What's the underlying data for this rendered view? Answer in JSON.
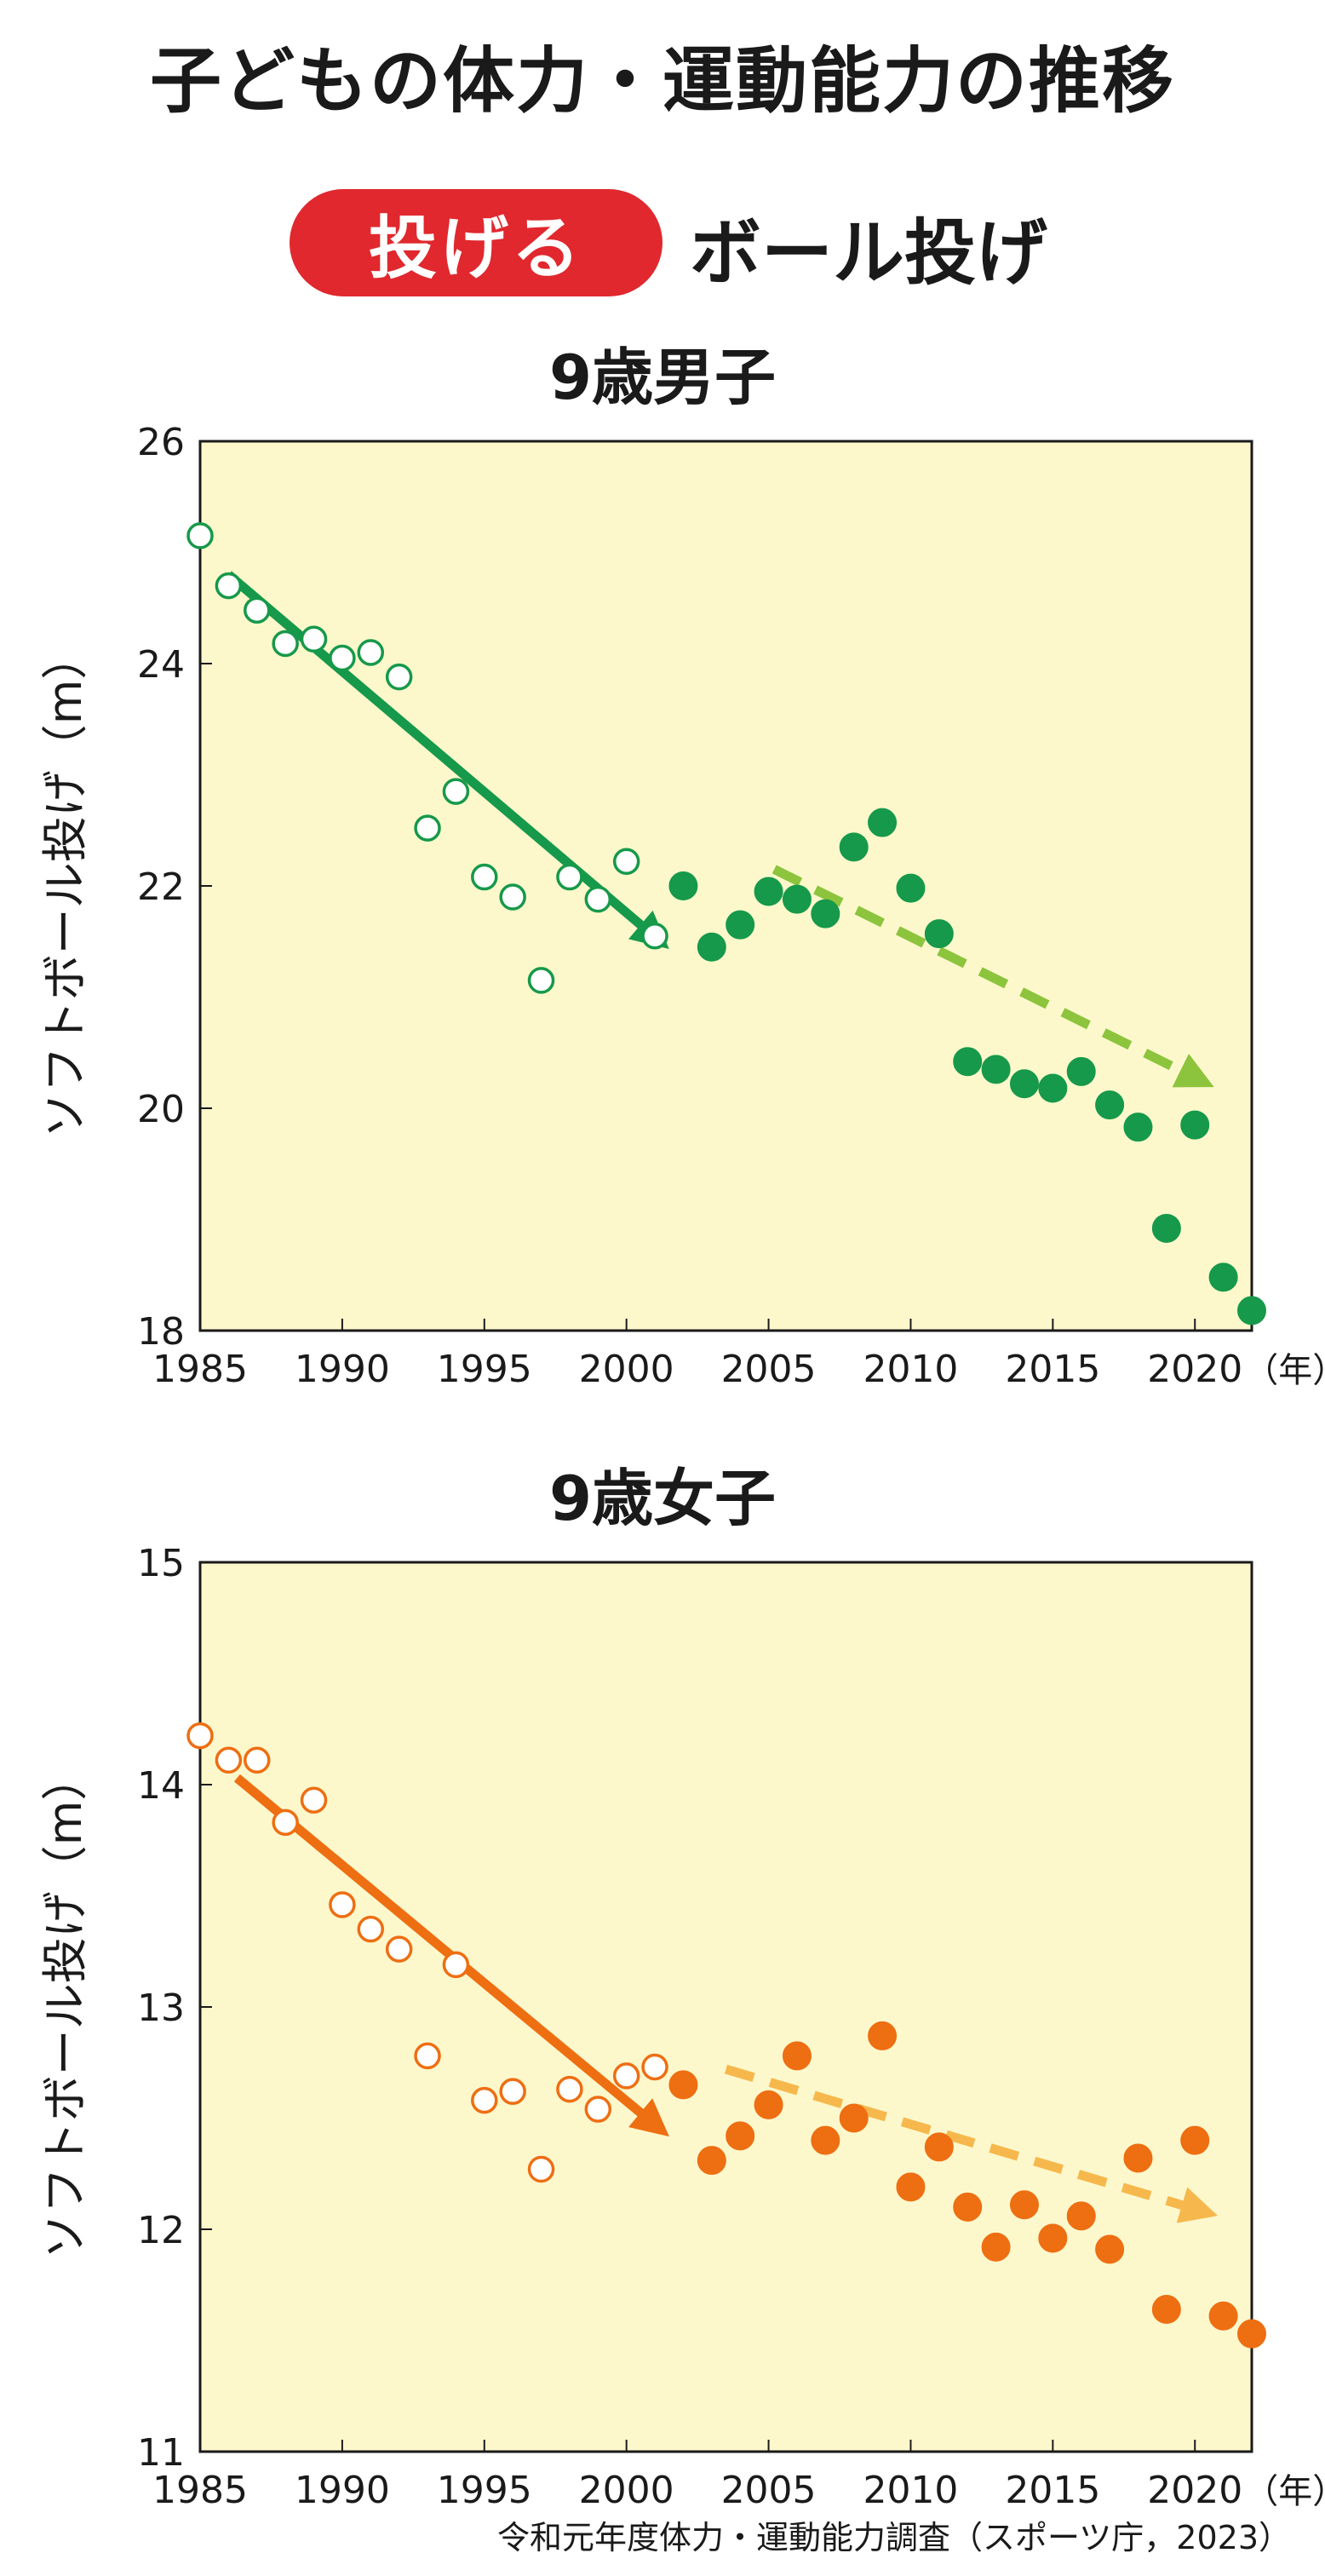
{
  "header": {
    "title": "子どもの体力・運動能力の推移",
    "badge": "投げる",
    "event": "ボール投げ"
  },
  "source": "令和元年度体力・運動能力調査（スポーツ庁，2023）",
  "colors": {
    "badge": "#e0282e",
    "plot_bg": "#fdf8cc",
    "boys_main": "#16994a",
    "boys_trend2": "#8cc43d",
    "girls_main": "#ee6e12",
    "girls_trend2": "#f6b84c"
  },
  "chart_data": [
    {
      "type": "scatter",
      "title": "9歳男子",
      "ylabel": "ソフトボール投げ（m）",
      "x_suffix": "（年）",
      "xlim": [
        1985,
        2022
      ],
      "ylim": [
        18,
        26
      ],
      "xticks": [
        1985,
        1990,
        1995,
        2000,
        2005,
        2010,
        2015,
        2020
      ],
      "yticks": [
        18,
        20,
        22,
        24,
        26
      ],
      "series": [
        {
          "style": "open",
          "points": [
            [
              1985,
              25.15
            ],
            [
              1986,
              24.7
            ],
            [
              1987,
              24.48
            ],
            [
              1988,
              24.18
            ],
            [
              1989,
              24.22
            ],
            [
              1990,
              24.05
            ],
            [
              1991,
              24.1
            ],
            [
              1992,
              23.88
            ],
            [
              1993,
              22.52
            ],
            [
              1994,
              22.85
            ],
            [
              1995,
              22.08
            ],
            [
              1996,
              21.9
            ],
            [
              1997,
              21.15
            ],
            [
              1998,
              22.08
            ],
            [
              1999,
              21.88
            ],
            [
              2000,
              22.22
            ],
            [
              2001,
              21.55
            ]
          ]
        },
        {
          "style": "filled",
          "points": [
            [
              2002,
              22.0
            ],
            [
              2003,
              21.45
            ],
            [
              2004,
              21.65
            ],
            [
              2005,
              21.95
            ],
            [
              2006,
              21.88
            ],
            [
              2007,
              21.75
            ],
            [
              2008,
              22.35
            ],
            [
              2009,
              22.57
            ],
            [
              2010,
              21.98
            ],
            [
              2011,
              21.57
            ],
            [
              2012,
              20.42
            ],
            [
              2013,
              20.35
            ],
            [
              2014,
              20.22
            ],
            [
              2015,
              20.18
            ],
            [
              2016,
              20.33
            ],
            [
              2017,
              20.03
            ],
            [
              2018,
              19.83
            ],
            [
              2019,
              18.92
            ],
            [
              2020,
              19.85
            ],
            [
              2021,
              18.48
            ],
            [
              2022,
              18.18
            ]
          ]
        }
      ],
      "trends": [
        {
          "style": "solid",
          "from": [
            1986,
            24.8
          ],
          "to": [
            2001.1,
            21.52
          ]
        },
        {
          "style": "dashed",
          "from": [
            2005.2,
            22.15
          ],
          "to": [
            2020.2,
            20.25
          ]
        }
      ]
    },
    {
      "type": "scatter",
      "title": "9歳女子",
      "ylabel": "ソフトボール投げ（m）",
      "x_suffix": "（年）",
      "xlim": [
        1985,
        2022
      ],
      "ylim": [
        11,
        15
      ],
      "xticks": [
        1985,
        1990,
        1995,
        2000,
        2005,
        2010,
        2015,
        2020
      ],
      "yticks": [
        11,
        12,
        13,
        14,
        15
      ],
      "series": [
        {
          "style": "open",
          "points": [
            [
              1985,
              14.22
            ],
            [
              1986,
              14.11
            ],
            [
              1987,
              14.11
            ],
            [
              1988,
              13.83
            ],
            [
              1989,
              13.93
            ],
            [
              1990,
              13.46
            ],
            [
              1991,
              13.35
            ],
            [
              1992,
              13.26
            ],
            [
              1993,
              12.78
            ],
            [
              1994,
              13.19
            ],
            [
              1995,
              12.58
            ],
            [
              1996,
              12.62
            ],
            [
              1997,
              12.27
            ],
            [
              1998,
              12.63
            ],
            [
              1999,
              12.54
            ],
            [
              2000,
              12.69
            ],
            [
              2001,
              12.73
            ]
          ]
        },
        {
          "style": "filled",
          "points": [
            [
              2002,
              12.65
            ],
            [
              2003,
              12.31
            ],
            [
              2004,
              12.42
            ],
            [
              2005,
              12.56
            ],
            [
              2006,
              12.78
            ],
            [
              2007,
              12.4
            ],
            [
              2008,
              12.5
            ],
            [
              2009,
              12.87
            ],
            [
              2010,
              12.19
            ],
            [
              2011,
              12.37
            ],
            [
              2012,
              12.1
            ],
            [
              2013,
              11.92
            ],
            [
              2014,
              12.11
            ],
            [
              2015,
              11.96
            ],
            [
              2016,
              12.06
            ],
            [
              2017,
              11.91
            ],
            [
              2018,
              12.32
            ],
            [
              2019,
              11.64
            ],
            [
              2020,
              12.4
            ],
            [
              2021,
              11.61
            ],
            [
              2022,
              11.53
            ]
          ]
        }
      ],
      "trends": [
        {
          "style": "solid",
          "from": [
            1986.3,
            14.03
          ],
          "to": [
            2001.1,
            12.46
          ]
        },
        {
          "style": "dashed",
          "from": [
            2003.5,
            12.72
          ],
          "to": [
            2020.3,
            12.08
          ]
        }
      ]
    }
  ]
}
